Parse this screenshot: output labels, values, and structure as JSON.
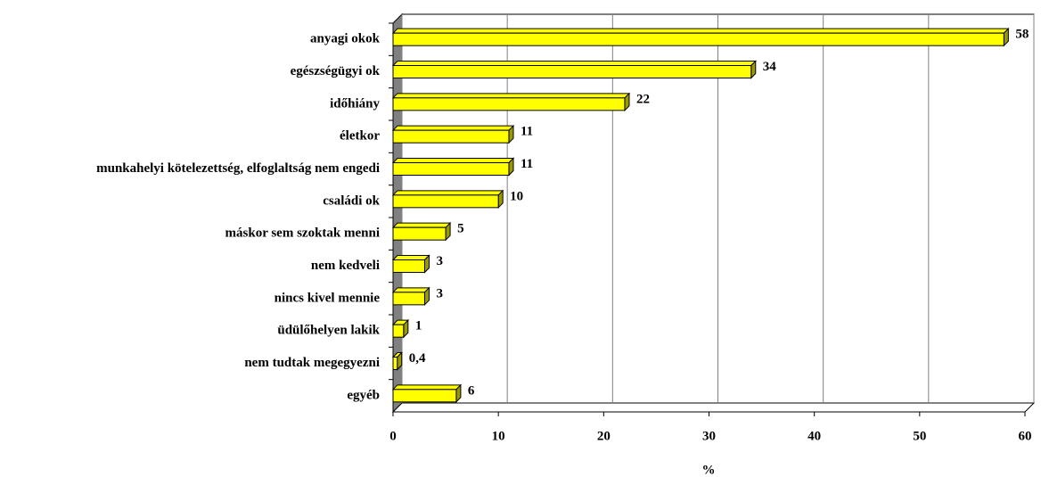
{
  "chart_data": {
    "type": "bar",
    "orientation": "horizontal",
    "three_d": true,
    "categories": [
      "anyagi okok",
      "egészségügyi ok",
      "időhiány",
      "életkor",
      "munkahelyi kötelezettség, elfoglaltság nem engedi",
      "családi ok",
      "máskor sem szoktak menni",
      "nem kedveli",
      "nincs kivel mennie",
      "üdülőhelyen lakik",
      "nem tudtak megegyezni",
      "egyéb"
    ],
    "values": [
      58,
      34,
      22,
      11,
      11,
      10,
      5,
      3,
      3,
      1,
      0.4,
      6
    ],
    "value_labels": [
      "58",
      "34",
      "22",
      "11",
      "11",
      "10",
      "5",
      "3",
      "3",
      "1",
      "0,4",
      "6"
    ],
    "color": "#ffff00",
    "xlabel": "%",
    "xlim": [
      0,
      60
    ],
    "xticks": [
      0,
      10,
      20,
      30,
      40,
      50,
      60
    ],
    "grid": true
  }
}
